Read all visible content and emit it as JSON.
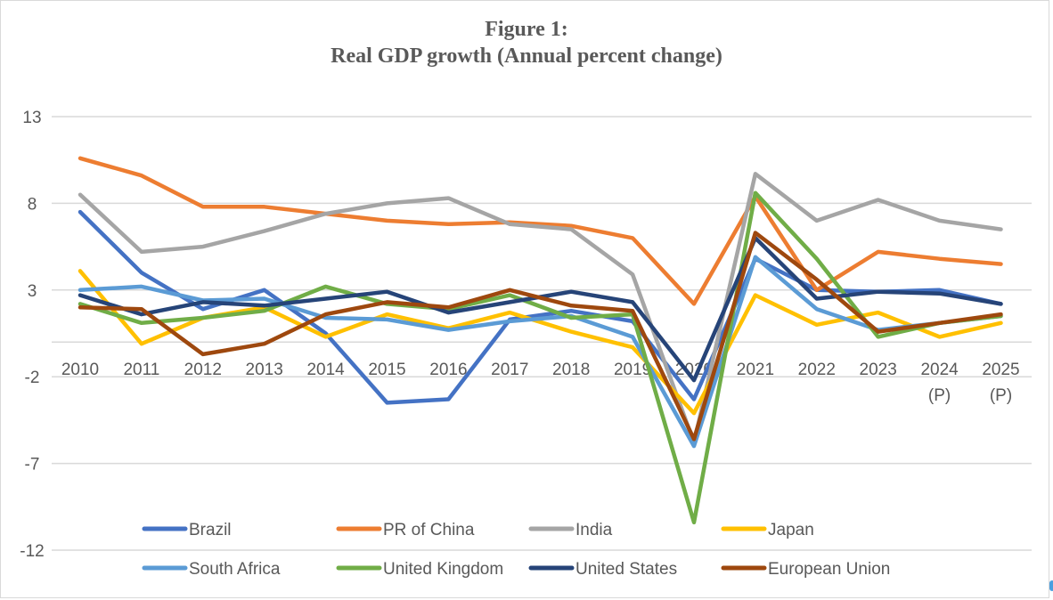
{
  "chart_data": {
    "type": "line",
    "title_line1": "Figure 1:",
    "title_line2": "Real GDP growth (Annual percent change)",
    "xlabel": "",
    "ylabel": "",
    "categories": [
      "2010",
      "2011",
      "2012",
      "2013",
      "2014",
      "2015",
      "2016",
      "2017",
      "2018",
      "2019",
      "2020",
      "2021",
      "2022",
      "2023",
      "2024",
      "2025"
    ],
    "category_sublabels": [
      "",
      "",
      "",
      "",
      "",
      "",
      "",
      "",
      "",
      "",
      "",
      "",
      "",
      "",
      "(P)",
      "(P)"
    ],
    "yticks": [
      13,
      8,
      3,
      -2,
      -7,
      -12
    ],
    "ylim": [
      -12,
      13
    ],
    "grid": true,
    "legend_position": "bottom",
    "series": [
      {
        "name": "Brazil",
        "color": "#4472C4",
        "values": [
          7.5,
          4.0,
          1.9,
          3.0,
          0.5,
          -3.5,
          -3.3,
          1.3,
          1.8,
          1.2,
          -3.3,
          4.8,
          3.0,
          2.9,
          3.0,
          2.2
        ]
      },
      {
        "name": "PR of China",
        "color": "#ED7D31",
        "values": [
          10.6,
          9.6,
          7.8,
          7.8,
          7.4,
          7.0,
          6.8,
          6.9,
          6.7,
          6.0,
          2.2,
          8.4,
          3.0,
          5.2,
          4.8,
          4.5
        ]
      },
      {
        "name": "India",
        "color": "#A5A5A5",
        "values": [
          8.5,
          5.2,
          5.5,
          6.4,
          7.4,
          8.0,
          8.3,
          6.8,
          6.5,
          3.9,
          -5.8,
          9.7,
          7.0,
          8.2,
          7.0,
          6.5
        ]
      },
      {
        "name": "Japan",
        "color": "#FFC000",
        "values": [
          4.1,
          -0.1,
          1.4,
          2.0,
          0.3,
          1.6,
          0.8,
          1.7,
          0.6,
          -0.3,
          -4.1,
          2.7,
          1.0,
          1.7,
          0.3,
          1.1
        ]
      },
      {
        "name": "South Africa",
        "color": "#5B9BD5",
        "values": [
          3.0,
          3.2,
          2.4,
          2.5,
          1.4,
          1.3,
          0.7,
          1.2,
          1.5,
          0.3,
          -6.0,
          4.9,
          1.9,
          0.7,
          1.1,
          1.5
        ]
      },
      {
        "name": "United Kingdom",
        "color": "#70AD47",
        "values": [
          2.2,
          1.1,
          1.4,
          1.8,
          3.2,
          2.2,
          1.9,
          2.7,
          1.4,
          1.6,
          -10.4,
          8.6,
          4.8,
          0.3,
          1.1,
          1.5
        ]
      },
      {
        "name": "United States",
        "color": "#264478",
        "values": [
          2.7,
          1.6,
          2.3,
          2.1,
          2.5,
          2.9,
          1.7,
          2.3,
          2.9,
          2.3,
          -2.2,
          6.0,
          2.5,
          2.9,
          2.8,
          2.2
        ]
      },
      {
        "name": "European Union",
        "color": "#9E480E",
        "values": [
          2.0,
          1.9,
          -0.7,
          -0.1,
          1.6,
          2.3,
          2.0,
          3.0,
          2.1,
          1.8,
          -5.6,
          6.3,
          3.6,
          0.6,
          1.1,
          1.6
        ]
      }
    ]
  }
}
